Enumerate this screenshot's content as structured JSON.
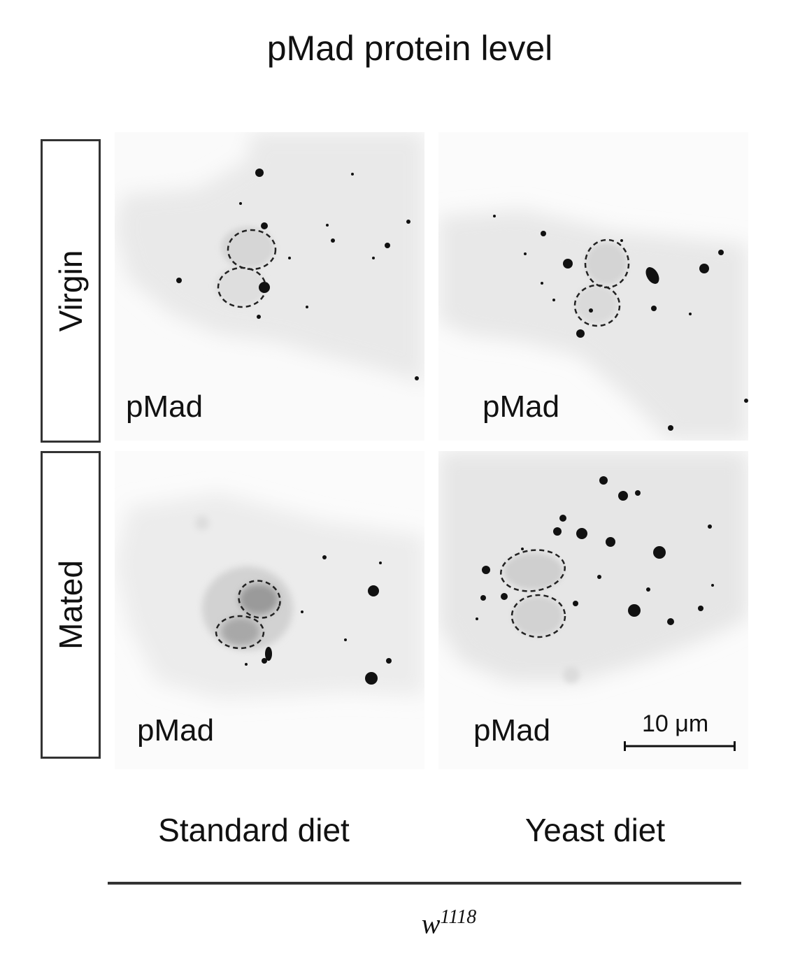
{
  "figure": {
    "title": "pMad protein level",
    "rows": [
      {
        "label": "Virgin"
      },
      {
        "label": "Mated"
      }
    ],
    "columns": [
      {
        "label": "Standard diet"
      },
      {
        "label": "Yeast diet"
      }
    ],
    "panels": [
      {
        "label": "pMad",
        "condition": "Virgin, Standard diet"
      },
      {
        "label": "pMad",
        "condition": "Virgin, Yeast diet"
      },
      {
        "label": "pMad",
        "condition": "Mated, Standard diet"
      },
      {
        "label": "pMad",
        "condition": "Mated, Yeast diet"
      }
    ],
    "scale_bar": {
      "label": "10 μm"
    },
    "genotype": {
      "base": "w",
      "superscript": "1118"
    },
    "colors": {
      "stain": "#111111",
      "tissue": "#e6e6e6",
      "outline": "#222222"
    }
  }
}
